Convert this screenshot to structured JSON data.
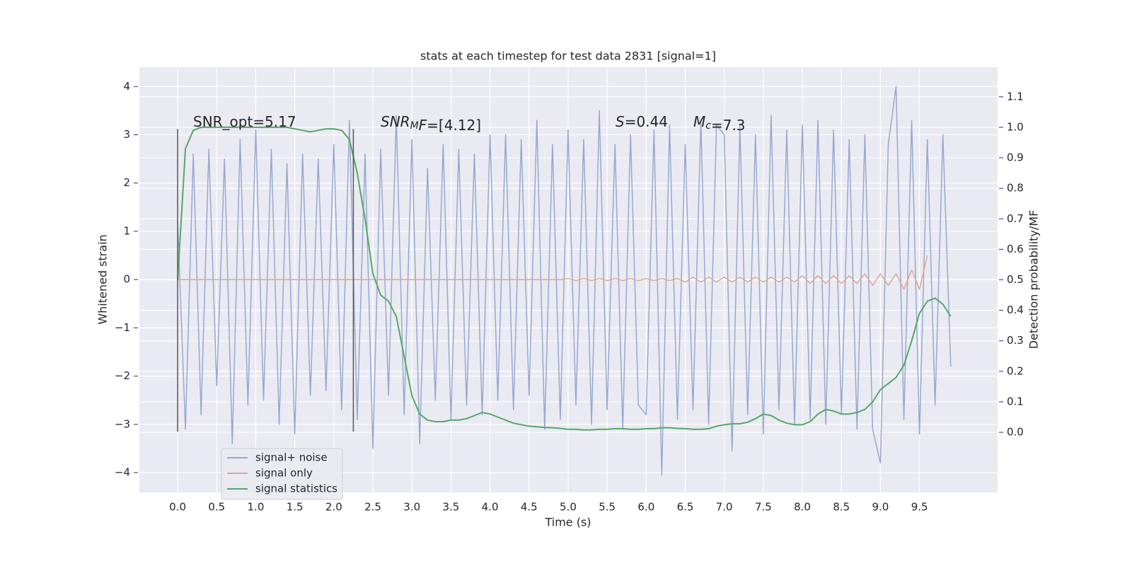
{
  "chart_data": {
    "type": "line",
    "title": "stats at each timestep for test data 2831 [signal=1]",
    "x_label": "Time (s)",
    "y_label": "Whitened strain",
    "y2_label": "Detection probability/MF",
    "annotations": [
      [
        {
          "text": "SNR_opt=5.17"
        }
      ],
      [
        {
          "text": "SNR",
          "italic": true
        },
        {
          "text": "M",
          "italic": true,
          "sub": true
        },
        {
          "text": "F",
          "italic": true
        },
        {
          "text": "=[4.12]"
        }
      ],
      [
        {
          "text": "S",
          "italic": true
        },
        {
          "text": "=0.44"
        }
      ],
      [
        {
          "text": "M",
          "italic": true
        },
        {
          "text": "c",
          "italic": true,
          "sub": true
        },
        {
          "text": "=7.3"
        }
      ]
    ],
    "x": [
      0.0,
      0.1,
      0.2,
      0.3,
      0.4,
      0.5,
      0.6,
      0.7,
      0.8,
      0.9,
      1.0,
      1.1,
      1.2,
      1.3,
      1.4,
      1.5,
      1.6,
      1.7,
      1.8,
      1.9,
      2.0,
      2.1,
      2.2,
      2.3,
      2.4,
      2.5,
      2.6,
      2.7,
      2.8,
      2.9,
      3.0,
      3.1,
      3.2,
      3.3,
      3.4,
      3.5,
      3.6,
      3.7,
      3.8,
      3.9,
      4.0,
      4.1,
      4.2,
      4.3,
      4.4,
      4.5,
      4.6,
      4.7,
      4.8,
      4.9,
      5.0,
      5.1,
      5.2,
      5.3,
      5.4,
      5.5,
      5.6,
      5.7,
      5.8,
      5.9,
      6.0,
      6.1,
      6.2,
      6.3,
      6.4,
      6.5,
      6.6,
      6.7,
      6.8,
      6.9,
      7.0,
      7.1,
      7.2,
      7.3,
      7.4,
      7.5,
      7.6,
      7.7,
      7.8,
      7.9,
      8.0,
      8.1,
      8.2,
      8.3,
      8.4,
      8.5,
      8.6,
      8.7,
      8.8,
      8.9,
      9.0,
      9.1,
      9.2,
      9.3,
      9.4,
      9.5,
      9.6,
      9.7,
      9.8,
      9.9
    ],
    "series": [
      {
        "name": "signal+ noise",
        "color": "#97a9d1",
        "axis": "y",
        "values": [
          1.2,
          -3.1,
          2.6,
          -2.8,
          2.7,
          -2.2,
          2.5,
          -3.4,
          2.9,
          -2.6,
          3.1,
          -2.5,
          2.7,
          -3.0,
          2.4,
          -3.2,
          2.6,
          -2.4,
          2.5,
          -2.3,
          2.8,
          -2.7,
          3.3,
          -2.9,
          2.6,
          -3.5,
          2.7,
          -2.4,
          3.4,
          -2.8,
          2.9,
          -3.4,
          2.3,
          -2.5,
          2.8,
          -2.9,
          2.7,
          -2.6,
          2.6,
          -2.8,
          3.0,
          -2.5,
          3.0,
          -2.7,
          2.9,
          -2.4,
          3.3,
          -3.1,
          2.8,
          -2.9,
          3.1,
          -2.6,
          2.9,
          -3.0,
          3.5,
          -2.7,
          2.8,
          -3.1,
          3.0,
          -2.6,
          -2.8,
          3.1,
          -4.05,
          3.2,
          -2.9,
          2.8,
          -2.7,
          3.3,
          -3.0,
          3.2,
          3.0,
          -3.55,
          3.2,
          -2.8,
          3.0,
          -3.2,
          3.4,
          -2.7,
          3.1,
          -3.0,
          3.2,
          -2.9,
          3.3,
          -3.0,
          3.1,
          -2.8,
          2.9,
          -3.1,
          3.0,
          -3.1,
          -3.8,
          2.8,
          4.0,
          -2.9,
          3.3,
          -3.2,
          2.9,
          -2.6,
          3.0,
          -1.8
        ]
      },
      {
        "name": "signal only",
        "color": "#e3a68a",
        "axis": "y",
        "values": [
          0,
          0,
          0,
          0,
          0,
          0,
          0,
          0,
          0,
          0,
          0,
          0,
          0,
          0,
          0,
          0,
          0,
          0,
          0,
          0,
          0,
          0,
          0,
          0,
          0,
          0,
          0,
          0,
          0,
          0,
          0,
          0,
          0,
          0,
          0,
          0,
          0,
          0,
          0,
          0,
          0,
          0,
          0,
          0,
          0,
          0,
          0,
          0,
          0,
          0,
          0.02,
          -0.02,
          0.02,
          -0.02,
          0.02,
          -0.02,
          0.02,
          -0.02,
          0.02,
          -0.02,
          0.02,
          -0.02,
          0.02,
          -0.02,
          0.02,
          -0.05,
          0.05,
          -0.05,
          0.05,
          -0.05,
          0.05,
          -0.05,
          0.05,
          -0.05,
          0.05,
          -0.05,
          0.05,
          -0.05,
          0.05,
          -0.05,
          0.08,
          -0.08,
          0.08,
          -0.08,
          0.08,
          -0.08,
          0.08,
          -0.08,
          0.12,
          -0.12,
          0.12,
          -0.12,
          0.12,
          -0.2,
          0.2,
          -0.2,
          0.5,
          null,
          null,
          null
        ]
      },
      {
        "name": "signal statistics",
        "color": "#55a868",
        "axis": "y2",
        "values": [
          0.5,
          0.93,
          0.99,
          1.0,
          1.0,
          1.0,
          1.0,
          1.0,
          1.0,
          1.0,
          1.0,
          1.0,
          1.0,
          1.0,
          1.0,
          0.995,
          0.99,
          0.985,
          0.99,
          0.995,
          0.995,
          0.99,
          0.96,
          0.85,
          0.7,
          0.52,
          0.45,
          0.43,
          0.38,
          0.25,
          0.12,
          0.06,
          0.04,
          0.035,
          0.035,
          0.04,
          0.04,
          0.045,
          0.055,
          0.065,
          0.06,
          0.05,
          0.04,
          0.03,
          0.025,
          0.02,
          0.018,
          0.016,
          0.015,
          0.013,
          0.01,
          0.01,
          0.008,
          0.008,
          0.01,
          0.01,
          0.012,
          0.012,
          0.01,
          0.01,
          0.012,
          0.012,
          0.015,
          0.015,
          0.013,
          0.012,
          0.01,
          0.01,
          0.012,
          0.02,
          0.025,
          0.028,
          0.028,
          0.033,
          0.045,
          0.06,
          0.055,
          0.04,
          0.03,
          0.025,
          0.025,
          0.035,
          0.06,
          0.075,
          0.07,
          0.06,
          0.06,
          0.065,
          0.075,
          0.1,
          0.14,
          0.16,
          0.18,
          0.22,
          0.3,
          0.39,
          0.43,
          0.44,
          0.42,
          0.38
        ]
      }
    ],
    "vlines": {
      "x": [
        0,
        2.25
      ],
      "ymin": -3.15,
      "ymax": 3.12,
      "color": "#555555"
    },
    "xlim": [
      -0.49,
      10.5
    ],
    "ylim": [
      -4.41,
      4.4
    ],
    "y2lim": [
      -0.197,
      1.197
    ],
    "xticks": [
      {
        "value": 0,
        "label": "0.0"
      },
      0.5,
      {
        "value": 1,
        "label": "1.0"
      },
      1.5,
      {
        "value": 2,
        "label": "2.0"
      },
      2.5,
      {
        "value": 3,
        "label": "3.0"
      },
      3.5,
      {
        "value": 4,
        "label": "4.0"
      },
      4.5,
      {
        "value": 5,
        "label": "5.0"
      },
      5.5,
      {
        "value": 6,
        "label": "6.0"
      },
      6.5,
      {
        "value": 7,
        "label": "7.0"
      },
      7.5,
      {
        "value": 8,
        "label": "8.0"
      },
      8.5,
      {
        "value": 9,
        "label": "9.0"
      },
      9.5
    ],
    "yticks": [
      {
        "value": -4,
        "label": "−4"
      },
      {
        "value": -3,
        "label": "−3"
      },
      {
        "value": -2,
        "label": "−2"
      },
      {
        "value": -1,
        "label": "−1"
      },
      0,
      1,
      2,
      3,
      4
    ],
    "y2ticks": [
      {
        "value": 0,
        "label": "0.0"
      },
      0.1,
      0.2,
      0.3,
      0.4,
      0.5,
      0.6,
      0.7,
      0.8,
      0.9,
      {
        "value": 1,
        "label": "1.0"
      },
      1.1
    ],
    "grid": true,
    "legend_loc": "lower left"
  }
}
